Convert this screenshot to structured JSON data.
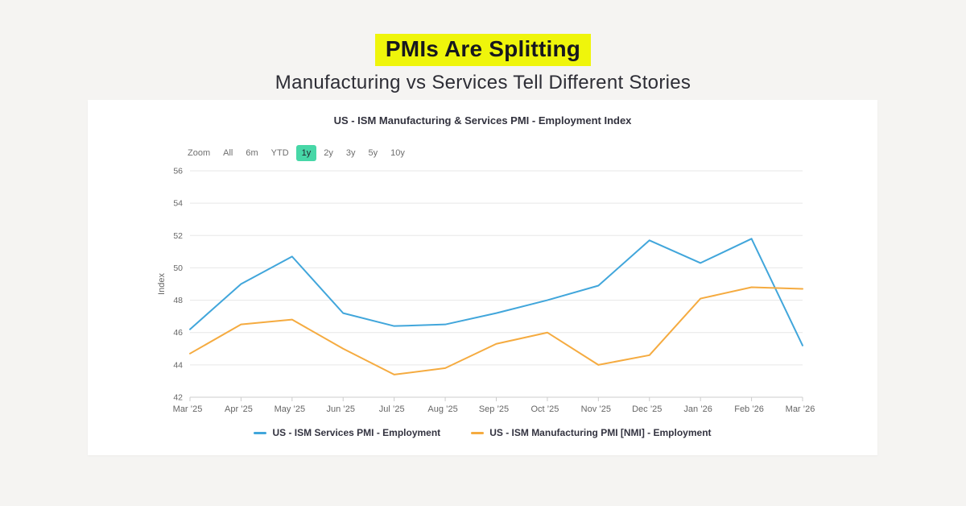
{
  "page": {
    "heading": "PMIs Are Splitting",
    "subheading": "Manufacturing vs Services Tell Different Stories"
  },
  "chart": {
    "title": "US - ISM Manufacturing & Services PMI - Employment Index",
    "zoom_toolbar": {
      "label": "Zoom",
      "options": [
        "All",
        "6m",
        "YTD",
        "1y",
        "2y",
        "3y",
        "5y",
        "10y"
      ],
      "selected": "1y"
    }
  },
  "chart_data": {
    "type": "line",
    "title": "US - ISM Manufacturing & Services PMI - Employment Index",
    "categories": [
      "Mar ’25",
      "Apr ’25",
      "May ’25",
      "Jun ’25",
      "Jul ’25",
      "Aug ’25",
      "Sep ’25",
      "Oct ’25",
      "Nov ’25",
      "Dec ’25",
      "Jan ’26",
      "Feb ’26",
      "Mar ’26"
    ],
    "series": [
      {
        "name": "US - ISM Services PMI - Employment",
        "color": "#41a6db",
        "values": [
          46.2,
          49.0,
          50.7,
          47.2,
          46.4,
          46.5,
          47.2,
          48.0,
          48.9,
          51.7,
          50.3,
          51.8,
          45.2
        ]
      },
      {
        "name": "US - ISM Manufacturing PMI [NMI] - Employment",
        "color": "#f5ab40",
        "values": [
          44.7,
          46.5,
          46.8,
          45.0,
          43.4,
          43.8,
          45.3,
          46.0,
          44.0,
          44.6,
          48.1,
          48.8,
          48.7
        ]
      }
    ],
    "xlabel": "",
    "ylabel": "Index",
    "ylim": [
      42,
      56
    ],
    "y_ticks": [
      42,
      44,
      46,
      48,
      50,
      52,
      54,
      56
    ],
    "grid": true,
    "legend_position": "bottom"
  },
  "colors": {
    "page_background": "#f5f4f2",
    "card_background": "#ffffff",
    "heading_highlight": "#eff50b",
    "zoom_selected": "#47d7a7",
    "services_line": "#41a6db",
    "manufacturing_line": "#f5ab40",
    "grid_line": "#e7e7e7",
    "axis_line": "#cccccc",
    "axis_text": "#666666"
  }
}
